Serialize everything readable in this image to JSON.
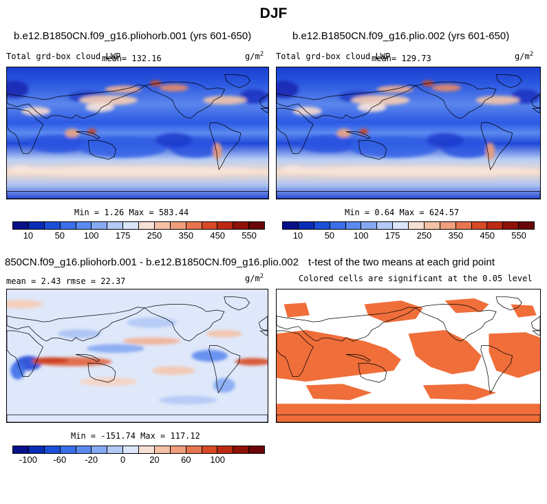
{
  "title": "DJF",
  "panels": [
    {
      "id": "p1",
      "title": "b.e12.B1850CN.f09_g16.pliohorb.001 (yrs 601-650)",
      "variable": "Total grd-box cloud LWP",
      "mean_label": "mean= 132.16",
      "units": "g/m",
      "units_exp": "2",
      "minmax": "Min =    1.26 Max = 583.44",
      "type": "field"
    },
    {
      "id": "p2",
      "title": "b.e12.B1850CN.f09_g16.plio.002 (yrs 601-650)",
      "variable": "Total grd-box cloud LWP",
      "mean_label": "mean= 129.73",
      "units": "g/m",
      "units_exp": "2",
      "minmax": "Min =    0.64 Max = 624.57",
      "type": "field"
    },
    {
      "id": "p3",
      "title": "850CN.f09_g16.pliohorb.001 - b.e12.B1850CN.f09_g16.plio.002",
      "stats": "mean =    2.43     rmse =   22.37",
      "units": "g/m",
      "units_exp": "2",
      "minmax": "Min = -151.74 Max = 117.12",
      "type": "difference"
    },
    {
      "id": "p4",
      "title": "t-test of the two means at each grid point",
      "subtitle": "Colored cells are significant at the 0.05 level",
      "type": "significance"
    }
  ],
  "colorbar_field": {
    "colors": [
      "#08108a",
      "#0a2db8",
      "#1a4fd8",
      "#3a6ee8",
      "#5c8af0",
      "#86a9f3",
      "#b3c9f6",
      "#dbe5fa",
      "#f7e0d4",
      "#f5c2a6",
      "#f09e7c",
      "#e7754f",
      "#d84a26",
      "#bd2a13",
      "#8f1208",
      "#6a0606"
    ],
    "labels": [
      "10",
      "50",
      "100",
      "175",
      "250",
      "350",
      "450",
      "550"
    ]
  },
  "colorbar_diff": {
    "colors": [
      "#08108a",
      "#0a2db8",
      "#1a4fd8",
      "#3a6ee8",
      "#5c8af0",
      "#86a9f3",
      "#b3c9f6",
      "#dbe5fa",
      "#f7e0d4",
      "#f5c2a6",
      "#f09e7c",
      "#e7754f",
      "#d84a26",
      "#bd2a13",
      "#8f1208",
      "#6a0606"
    ],
    "labels": [
      "-100",
      "-60",
      "-20",
      "0",
      "20",
      "60",
      "100"
    ]
  },
  "significance_color": "#ef6e3a"
}
